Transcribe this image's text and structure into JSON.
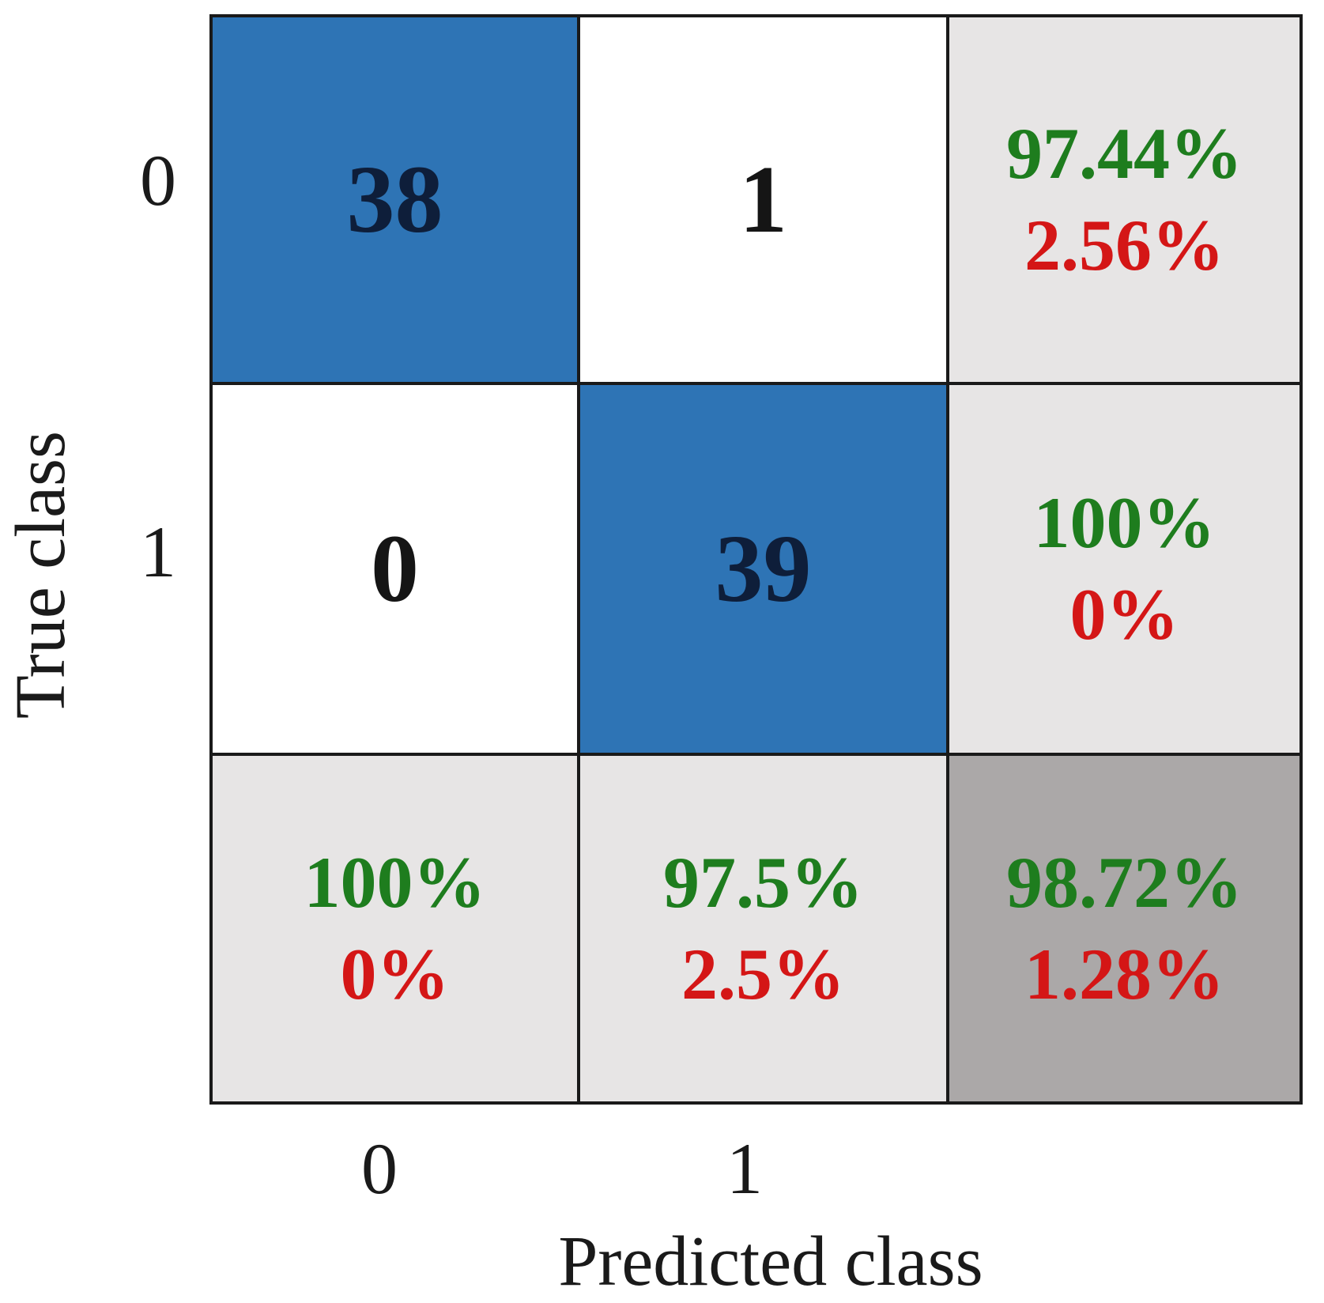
{
  "chart_data": {
    "type": "heatmap",
    "subtype": "confusion-matrix",
    "title": "",
    "xlabel": "Predicted class",
    "ylabel": "True class",
    "x_tick_labels": [
      "0",
      "1"
    ],
    "y_tick_labels": [
      "0",
      "1"
    ],
    "matrix": [
      [
        38,
        1
      ],
      [
        0,
        39
      ]
    ],
    "row_summary": [
      {
        "correct": "97.44%",
        "incorrect": "2.56%"
      },
      {
        "correct": "100%",
        "incorrect": "0%"
      }
    ],
    "col_summary": [
      {
        "correct": "100%",
        "incorrect": "0%"
      },
      {
        "correct": "97.5%",
        "incorrect": "2.5%"
      }
    ],
    "overall": {
      "correct": "98.72%",
      "incorrect": "1.28%"
    },
    "layout": {
      "grid_on": false,
      "legend": "none",
      "summary_row_and_column": true
    },
    "colors": {
      "diagonal_cell": "#2e74b5",
      "off_diagonal_cell": "#ffffff",
      "summary_cell": "#e7e5e5",
      "overall_cell": "#aba8a8",
      "correct_text": "#1e7d1e",
      "incorrect_text": "#d41616",
      "count_text_on_blue": "#0e1e3a",
      "count_text_on_white": "#151515",
      "grid_border": "#1a1a1a"
    }
  }
}
